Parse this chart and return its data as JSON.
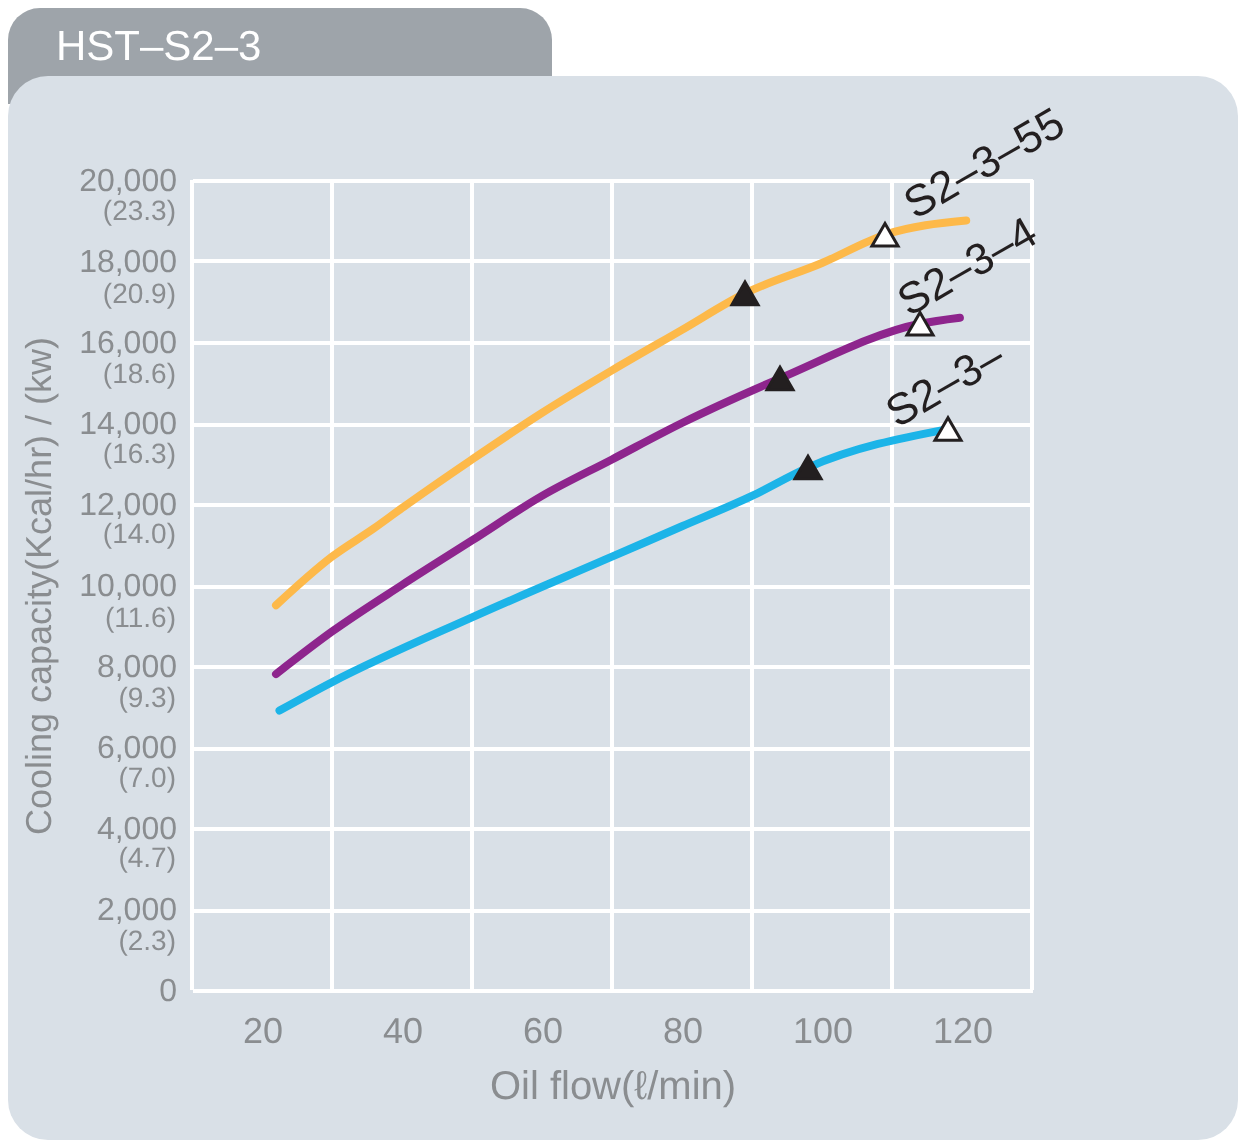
{
  "chart_data": {
    "type": "line",
    "title": "HST–S2–3",
    "xlabel": "Oil flow(ℓ/min)",
    "ylabel": "Cooling capacity(Kcal/hr)  /  (kw)",
    "xlim": [
      10,
      130
    ],
    "xticks": [
      {
        "value": 10,
        "label": null
      },
      20,
      {
        "value": 30,
        "label": null
      },
      40,
      {
        "value": 50,
        "label": null
      },
      60,
      {
        "value": 70,
        "label": null
      },
      80,
      {
        "value": 90,
        "label": null
      },
      100,
      {
        "value": 110,
        "label": null
      },
      120,
      {
        "value": 130,
        "label": null
      }
    ],
    "ylim": [
      0,
      20000
    ],
    "yticks": [
      0,
      {
        "value": 2000,
        "label": "2,000"
      },
      {
        "value": 4000,
        "label": "4,000"
      },
      {
        "value": 6000,
        "label": "6,000"
      },
      {
        "value": 8000,
        "label": "8,000"
      },
      {
        "value": 10000,
        "label": "10,000"
      },
      {
        "value": 12000,
        "label": "12,000"
      },
      {
        "value": 14000,
        "label": "14,000"
      },
      {
        "value": 16000,
        "label": "16,000"
      },
      {
        "value": 18000,
        "label": "18,000"
      },
      {
        "value": 20000,
        "label": "20,000"
      }
    ],
    "y2lim": [
      0,
      23.3
    ],
    "y2ticks": [
      {
        "value": 2.3,
        "label": "(2.3)"
      },
      {
        "value": 4.7,
        "label": "(4.7)"
      },
      {
        "value": 7.0,
        "label": "(7.0)"
      },
      {
        "value": 9.3,
        "label": "(9.3)"
      },
      {
        "value": 11.6,
        "label": "(11.6)"
      },
      {
        "value": 14.0,
        "label": "(14.0)"
      },
      {
        "value": 16.3,
        "label": "(16.3)"
      },
      {
        "value": 18.6,
        "label": "(18.6)"
      },
      {
        "value": 20.9,
        "label": "(20.9)"
      },
      {
        "value": 23.3,
        "label": "(23.3)"
      }
    ],
    "grid": true,
    "line_style": "solid",
    "series": [
      {
        "name": "S2–3–55",
        "color": "#fdb94a",
        "x": [
          22,
          30,
          36,
          40,
          50,
          60,
          70,
          80,
          89,
          100,
          109,
          120.6
        ],
        "values": [
          9500,
          10700,
          11400,
          11900,
          13100,
          14250,
          15300,
          16300,
          17200,
          17950,
          18650,
          19000
        ]
      },
      {
        "name": "S2–3–4",
        "color": "#8e258d",
        "x": [
          22,
          30,
          40,
          50,
          60,
          70,
          80,
          94,
          114,
          119.7
        ],
        "values": [
          7800,
          8850,
          10000,
          11100,
          12200,
          13100,
          14000,
          15100,
          16450,
          16600
        ]
      },
      {
        "name": "S2–3–",
        "color": "#1cb4e8",
        "x": [
          22.5,
          30,
          50,
          70,
          80,
          90,
          98,
          118
        ],
        "values": [
          6900,
          7600,
          9200,
          10700,
          11450,
          12200,
          12900,
          13850
        ]
      },
      {
        "type": "scatter",
        "marker": "triangle",
        "color": "#231f20",
        "x": [
          89,
          94,
          98
        ],
        "values": [
          17200,
          15100,
          12900
        ]
      },
      {
        "type": "scatter",
        "marker": "triangle",
        "color": "#ffffff",
        "x": [
          109,
          114,
          118
        ],
        "values": [
          18650,
          16450,
          13850
        ]
      }
    ]
  }
}
